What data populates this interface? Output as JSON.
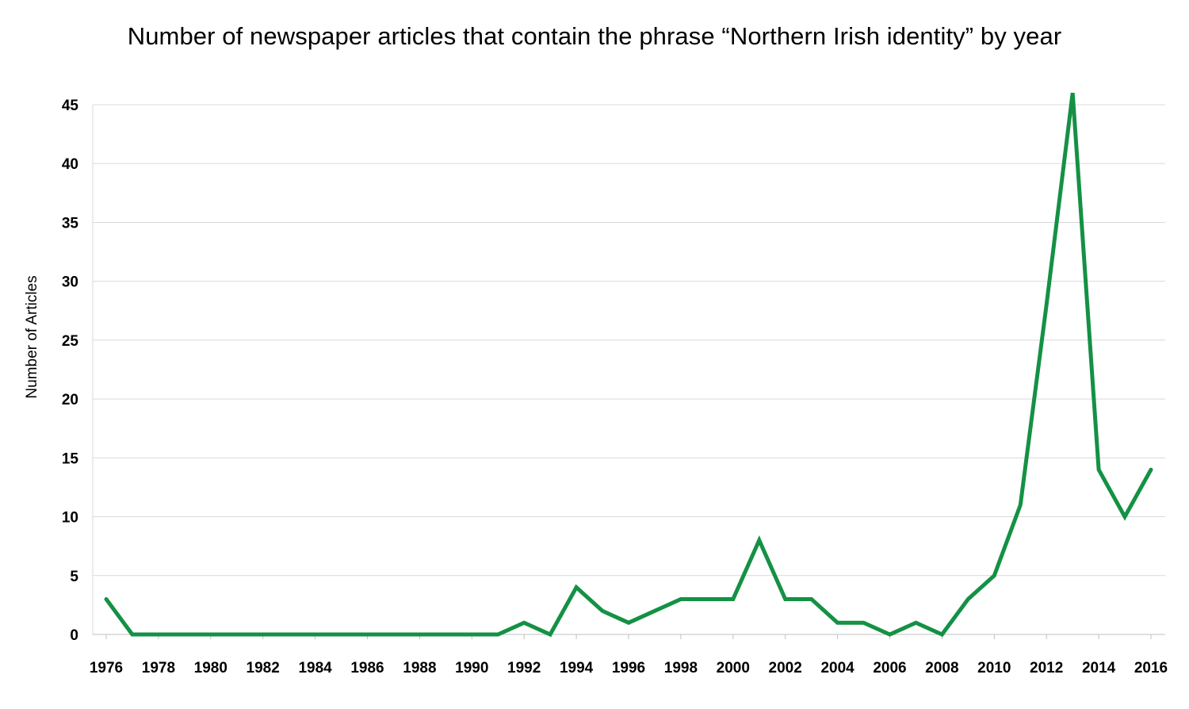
{
  "chart_data": {
    "type": "line",
    "title": "Number of newspaper articles that contain the phrase “Northern Irish identity” by year",
    "xlabel": "",
    "ylabel": "Number of Articles",
    "x": [
      1976,
      1977,
      1978,
      1979,
      1980,
      1981,
      1982,
      1983,
      1984,
      1985,
      1986,
      1987,
      1988,
      1989,
      1990,
      1991,
      1992,
      1993,
      1994,
      1995,
      1996,
      1997,
      1998,
      1999,
      2000,
      2001,
      2002,
      2003,
      2004,
      2005,
      2006,
      2007,
      2008,
      2009,
      2010,
      2011,
      2012,
      2013,
      2014,
      2015,
      2016
    ],
    "x_tick_labels": [
      "1976",
      "1978",
      "1980",
      "1982",
      "1984",
      "1986",
      "1988",
      "1990",
      "1992",
      "1994",
      "1996",
      "1998",
      "2000",
      "2002",
      "2004",
      "2006",
      "2008",
      "2010",
      "2012",
      "2014",
      "2016"
    ],
    "y_ticks": [
      0,
      5,
      10,
      15,
      20,
      25,
      30,
      35,
      40,
      45
    ],
    "ylim": [
      0,
      45
    ],
    "grid": true,
    "series": [
      {
        "color": "#149144",
        "values": [
          3,
          0,
          0,
          0,
          0,
          0,
          0,
          0,
          0,
          0,
          0,
          0,
          0,
          0,
          0,
          0,
          1,
          0,
          4,
          2,
          1,
          2,
          3,
          3,
          3,
          8,
          3,
          3,
          1,
          1,
          0,
          1,
          0,
          3,
          5,
          11,
          28,
          46,
          14,
          10,
          14
        ]
      }
    ]
  }
}
